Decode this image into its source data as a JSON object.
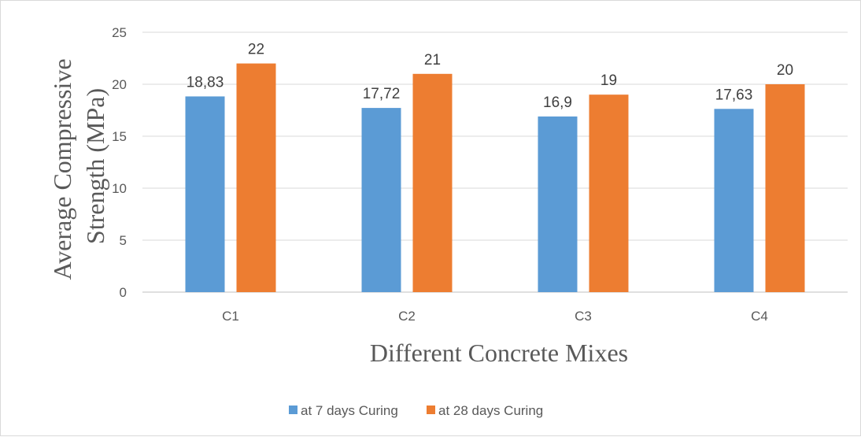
{
  "chart_data": {
    "type": "bar",
    "categories": [
      "C1",
      "C2",
      "C3",
      "C4"
    ],
    "series": [
      {
        "name": "at 7 days Curing",
        "values": [
          18.83,
          17.72,
          16.9,
          17.63
        ],
        "labels": [
          "18,83",
          "17,72",
          "16,9",
          "17,63"
        ],
        "color": "#5b9bd5"
      },
      {
        "name": "at 28 days Curing",
        "values": [
          22,
          21,
          19,
          20
        ],
        "labels": [
          "22",
          "21",
          "19",
          "20"
        ],
        "color": "#ed7d31"
      }
    ],
    "title": "",
    "xlabel": "Different Concrete Mixes",
    "ylabel": [
      "Average Compressive",
      "Strength (MPa)"
    ],
    "ylim": [
      0,
      25
    ],
    "yticks": [
      "0",
      "5",
      "10",
      "15",
      "20",
      "25"
    ],
    "grid": true,
    "legend_position": "bottom"
  }
}
